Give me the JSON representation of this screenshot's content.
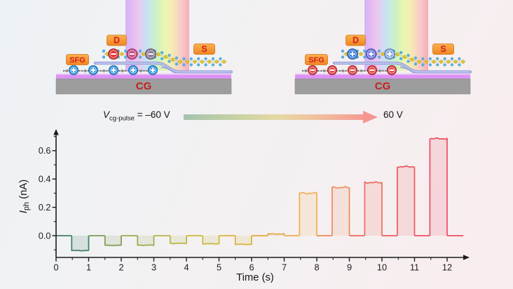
{
  "devices": {
    "left": {
      "sfg_label": "SFG",
      "drain_label": "D",
      "source_label": "S",
      "gate_label": "CG",
      "sfg_charge": "+",
      "sfg_charge_color": "#3e9ade",
      "sfg_charge_ring": "#1f6fb0",
      "channel_charge": "-",
      "channel_charge_colors": [
        "#dd3b3b",
        "#cb4f88",
        "#8d7f99"
      ],
      "channel_charge_rings": [
        "#a81f1f",
        "#93325f",
        "#5f5570"
      ]
    },
    "right": {
      "sfg_label": "SFG",
      "drain_label": "D",
      "source_label": "S",
      "gate_label": "CG",
      "sfg_charge": "-",
      "sfg_charge_color": "#e04b4b",
      "sfg_charge_ring": "#a82525",
      "channel_charge": "+",
      "channel_charge_colors": [
        "#3f80d6",
        "#6f74d8",
        "#8aabdc"
      ],
      "channel_charge_rings": [
        "#2558a8",
        "#4a4fae",
        "#5f7fa8"
      ]
    }
  },
  "annotation": {
    "v_main": "V",
    "v_sub": "cg-pulse",
    "v_rest": " = –60 V",
    "end_label": "60 V",
    "arrow_colors": [
      "#a5c3af",
      "#c6d0a4",
      "#e5d9a3",
      "#f0c09e",
      "#f59a92"
    ]
  },
  "chart_data": {
    "type": "line",
    "xlabel": "Time (s)",
    "ylabel_main": "I",
    "ylabel_sub": "ph",
    "ylabel_rest": " (nA)",
    "xlim": [
      0,
      12.6
    ],
    "ylim": [
      -0.16,
      0.75
    ],
    "grid": "off",
    "x_major_ticks": [
      0,
      1,
      2,
      3,
      4,
      5,
      6,
      7,
      8,
      9,
      10,
      11,
      12
    ],
    "x_minor_step": 0.5,
    "y_major_ticks": [
      "0.0",
      "0.2",
      "0.4",
      "0.6"
    ],
    "y_major_values": [
      0,
      0.2,
      0.4,
      0.6
    ],
    "y_minor_values": [
      -0.1,
      0.1,
      0.3,
      0.5,
      0.7
    ],
    "baseline": 0,
    "pulses": [
      {
        "t_on": 0.48,
        "t_off": 1.0,
        "value": -0.105,
        "color": "#3f7f63"
      },
      {
        "t_on": 1.5,
        "t_off": 2.0,
        "value": -0.068,
        "color": "#7d9c53"
      },
      {
        "t_on": 2.5,
        "t_off": 3.0,
        "value": -0.067,
        "color": "#9cab49"
      },
      {
        "t_on": 3.5,
        "t_off": 4.0,
        "value": -0.054,
        "color": "#b7b441"
      },
      {
        "t_on": 4.5,
        "t_off": 5.0,
        "value": -0.057,
        "color": "#cbb83b"
      },
      {
        "t_on": 5.5,
        "t_off": 6.0,
        "value": -0.061,
        "color": "#d8b335"
      },
      {
        "t_on": 6.5,
        "t_off": 7.0,
        "value": 0.012,
        "color": "#e2a83b"
      },
      {
        "t_on": 7.47,
        "t_off": 8.0,
        "value": 0.3,
        "color": "#f2ad52"
      },
      {
        "t_on": 8.47,
        "t_off": 9.0,
        "value": 0.34,
        "color": "#ef8a57"
      },
      {
        "t_on": 9.47,
        "t_off": 10.0,
        "value": 0.375,
        "color": "#ed6a5c"
      },
      {
        "t_on": 10.47,
        "t_off": 11.0,
        "value": 0.487,
        "color": "#ee5761"
      },
      {
        "t_on": 11.47,
        "t_off": 12.0,
        "value": 0.685,
        "color": "#ee4d62"
      }
    ],
    "tail_end": 12.5
  }
}
